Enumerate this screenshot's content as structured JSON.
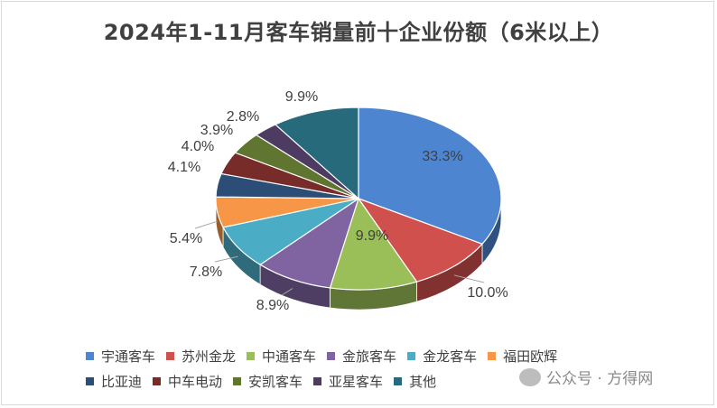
{
  "chart_data": {
    "type": "pie",
    "title": "2024年1-11月客车销量前十企业份额（6米以上）",
    "categories": [
      "宇通客车",
      "苏州金龙",
      "中通客车",
      "金旅客车",
      "金龙客车",
      "福田欧辉",
      "比亚迪",
      "中车电动",
      "安凯客车",
      "亚星客车",
      "其他"
    ],
    "values": [
      33.3,
      10.0,
      9.9,
      8.9,
      7.8,
      5.4,
      4.1,
      4.0,
      3.9,
      2.8,
      9.9
    ],
    "labels": [
      "33.3%",
      "10.0%",
      "9.9%",
      "8.9%",
      "7.8%",
      "5.4%",
      "4.1%",
      "4.0%",
      "3.9%",
      "2.8%",
      "9.9%"
    ],
    "colors": [
      "#4e85d0",
      "#d0504e",
      "#9bbf58",
      "#8064a2",
      "#4bacc6",
      "#f79646",
      "#2c4d75",
      "#772c2a",
      "#5f7530",
      "#4d3b62",
      "#276a7c"
    ],
    "legend_position": "bottom",
    "style": "3d"
  },
  "watermark": {
    "text": "公众号 · 方得网",
    "icon": "wechat-icon"
  }
}
